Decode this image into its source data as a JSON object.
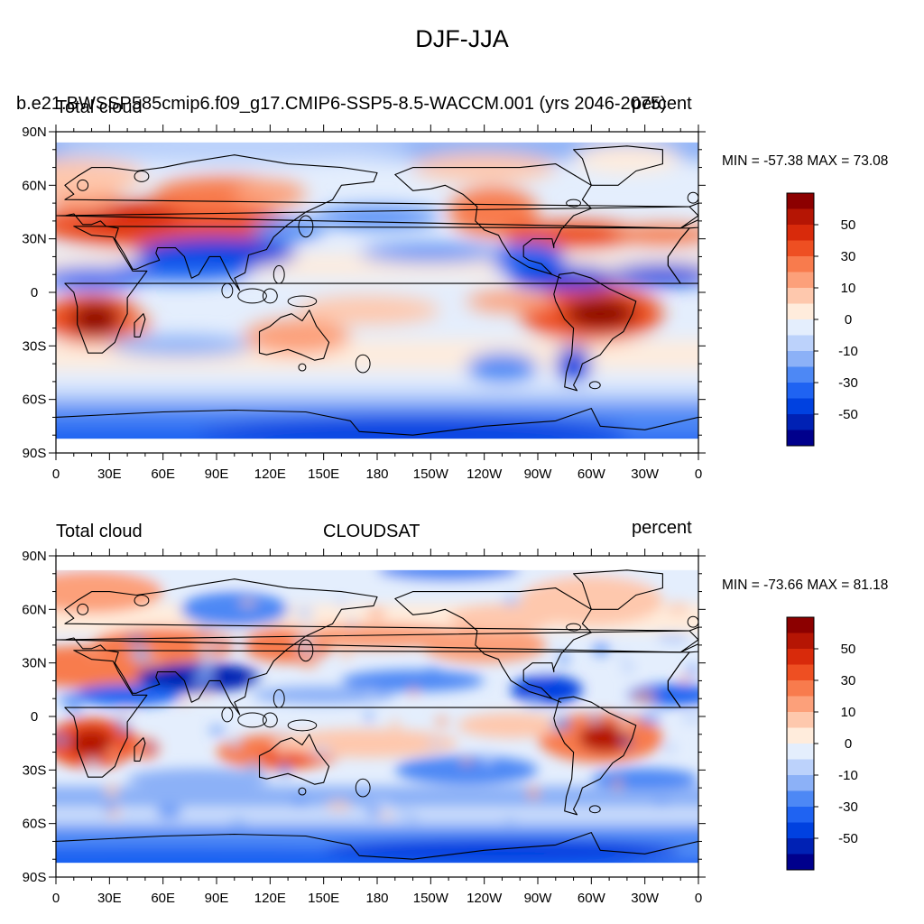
{
  "main_title": "DJF-JJA",
  "chart_data": [
    {
      "type": "heatmap",
      "title": "",
      "left_title": "Total cloud",
      "center_title": "",
      "right_title": "percent",
      "case_title": "b.e21.BWSSP585cmip6.f09_g17.CMIP6-SSP5-8.5-WACCM.001 (yrs 2046-2075)",
      "xlabel": "",
      "ylabel": "",
      "x_ticks": [
        "0",
        "30E",
        "60E",
        "90E",
        "120E",
        "150E",
        "180",
        "150W",
        "120W",
        "90W",
        "60W",
        "30W",
        "0"
      ],
      "y_ticks": [
        "90N",
        "60N",
        "30N",
        "0",
        "30S",
        "60S",
        "90S"
      ],
      "xlim": [
        0,
        360
      ],
      "ylim": [
        -90,
        90
      ],
      "min_text": "MIN = -57.38",
      "max_text": "MAX =  73.08",
      "min": -57.38,
      "max": 73.08,
      "colorbar_labels": [
        "50",
        "30",
        "10",
        "0",
        "-10",
        "-30",
        "-50"
      ]
    },
    {
      "type": "heatmap",
      "title": "",
      "left_title": "Total cloud",
      "center_title": "CLOUDSAT",
      "right_title": "percent",
      "case_title": "",
      "xlabel": "",
      "ylabel": "",
      "x_ticks": [
        "0",
        "30E",
        "60E",
        "90E",
        "120E",
        "150E",
        "180",
        "150W",
        "120W",
        "90W",
        "60W",
        "30W",
        "0"
      ],
      "y_ticks": [
        "90N",
        "60N",
        "30N",
        "0",
        "30S",
        "60S",
        "90S"
      ],
      "xlim": [
        0,
        360
      ],
      "ylim": [
        -90,
        90
      ],
      "min_text": "MIN = -73.66",
      "max_text": "MAX =  81.18",
      "min": -73.66,
      "max": 81.18,
      "colorbar_labels": [
        "50",
        "30",
        "10",
        "0",
        "-10",
        "-30",
        "-50"
      ]
    }
  ],
  "colors": {
    "palette": [
      "#00008c",
      "#0021b4",
      "#0041e0",
      "#1f63f2",
      "#4d88f5",
      "#8cb1f7",
      "#bcd2fb",
      "#e4eefd",
      "#ffecdc",
      "#fec8ad",
      "#fca07a",
      "#f87b4d",
      "#ee4f22",
      "#d82a0b",
      "#b51504",
      "#8c0000"
    ],
    "land_outline": "#000000"
  }
}
